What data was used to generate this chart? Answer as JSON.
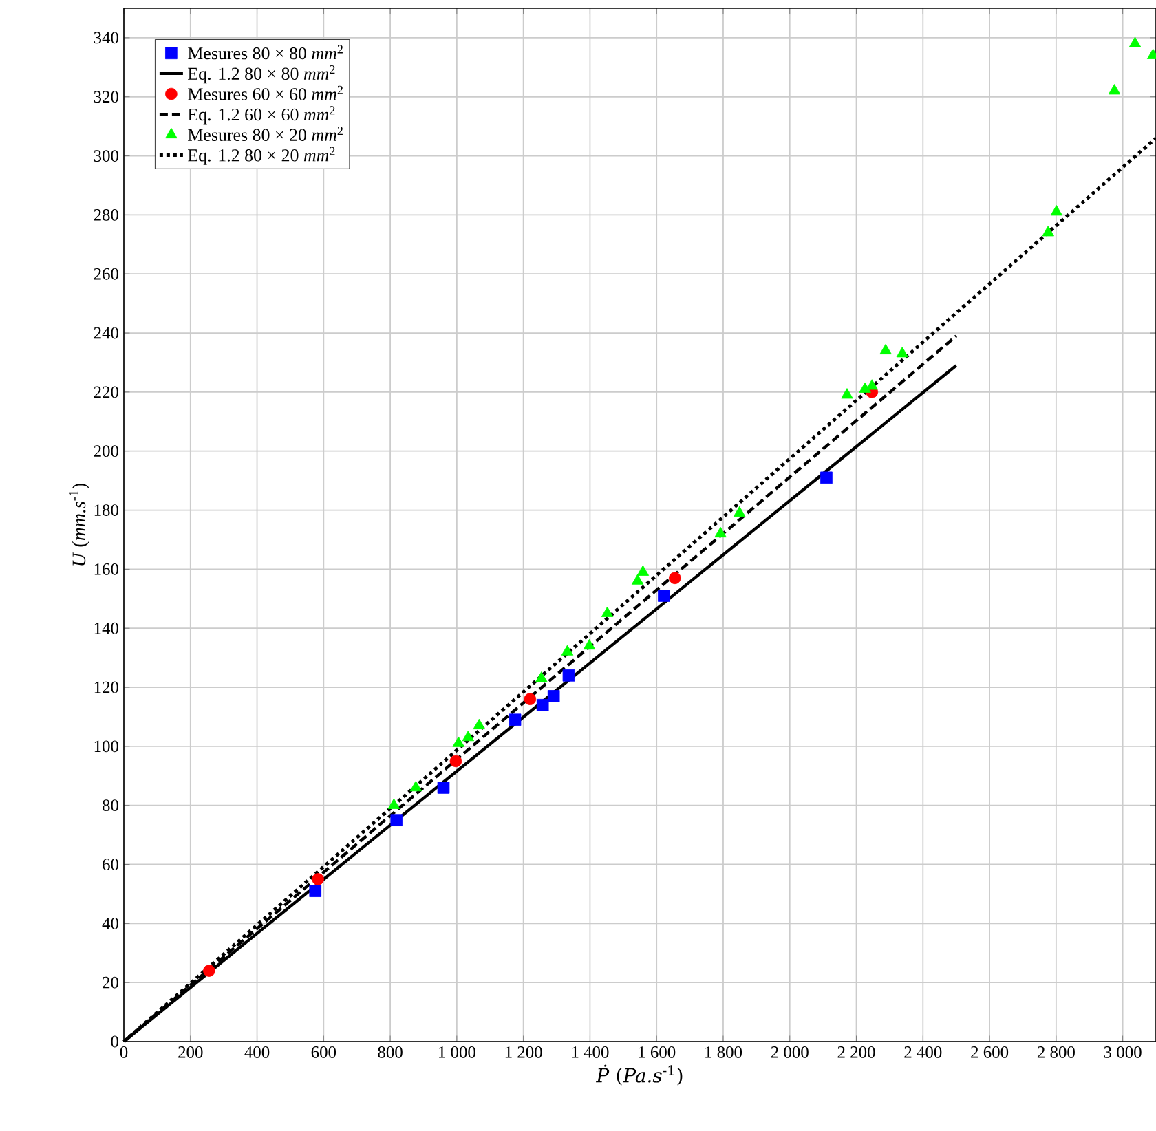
{
  "chart_data": {
    "type": "scatter",
    "xlabel": "*Ṗ* (*Pa.s*$^{-1}$)",
    "ylabel": "*U* (*mm.s*$^{-1}$)",
    "xlim": [
      0,
      3100
    ],
    "ylim": [
      0,
      350
    ],
    "xticks": [
      0,
      200,
      400,
      600,
      800,
      {
        "value": 1000,
        "label": "1 000"
      },
      {
        "value": 1200,
        "label": "1 200"
      },
      {
        "value": 1400,
        "label": "1 400"
      },
      {
        "value": 1600,
        "label": "1 600"
      },
      {
        "value": 1800,
        "label": "1 800"
      },
      {
        "value": 2000,
        "label": "2 000"
      },
      {
        "value": 2200,
        "label": "2 200"
      },
      {
        "value": 2400,
        "label": "2 400"
      },
      {
        "value": 2600,
        "label": "2 600"
      },
      {
        "value": 2800,
        "label": "2 800"
      },
      {
        "value": 3000,
        "label": "3 000"
      }
    ],
    "yticks": [
      0,
      20,
      40,
      60,
      80,
      100,
      120,
      140,
      160,
      180,
      200,
      220,
      240,
      260,
      280,
      300,
      320,
      340
    ],
    "grid": true,
    "legend": "top left",
    "series": [
      {
        "name": "Mesures 80 × 80 *mm*$^{2}$",
        "marker": "square",
        "color": "#0000ff",
        "x": [
          575,
          819,
          960,
          1175,
          1258,
          1291,
          1336,
          1622,
          2110
        ],
        "values": [
          51,
          75,
          86,
          109,
          114,
          117,
          124,
          151,
          191
        ]
      },
      {
        "name": "Eq. 1.2 80 × 80 *mm*$^{2}$",
        "type": "line",
        "marker": "none",
        "line_style": "solid",
        "color": "#000000",
        "x": [
          0,
          2500
        ],
        "values": [
          0,
          229
        ]
      },
      {
        "name": "Mesures 60 × 60 *mm*$^{2}$",
        "marker": "circle",
        "color": "#ff0000",
        "x": [
          256,
          583,
          997,
          1220,
          1655,
          2247
        ],
        "values": [
          24,
          55,
          95,
          116,
          157,
          220
        ]
      },
      {
        "name": "Eq. 1.2 60 × 60 *mm*$^{2}$",
        "type": "line",
        "marker": "none",
        "line_style": "dashed",
        "color": "#000000",
        "x": [
          0,
          2500
        ],
        "values": [
          0,
          239
        ]
      },
      {
        "name": "Mesures 80 × 20 *mm*$^{2}$",
        "marker": "triangle",
        "color": "#00ff00",
        "x": [
          811,
          877,
          1005,
          1034,
          1067,
          1254,
          1332,
          1398,
          1452,
          1543,
          1559,
          1792,
          1849,
          2172,
          2226,
          2247,
          2288,
          2338,
          2776,
          2801,
          2975,
          3037,
          3091
        ],
        "values": [
          80,
          86,
          101,
          103,
          107,
          123,
          132,
          134,
          145,
          156,
          159,
          172,
          179,
          219,
          221,
          222,
          234,
          233,
          274,
          281,
          322,
          338,
          334
        ]
      },
      {
        "name": "Eq. 1.2 80 × 20 *mm*$^{2}$",
        "type": "line",
        "marker": "none",
        "line_style": "dotted",
        "color": "#000000",
        "x": [
          0,
          3100
        ],
        "values": [
          0,
          306
        ]
      }
    ]
  }
}
